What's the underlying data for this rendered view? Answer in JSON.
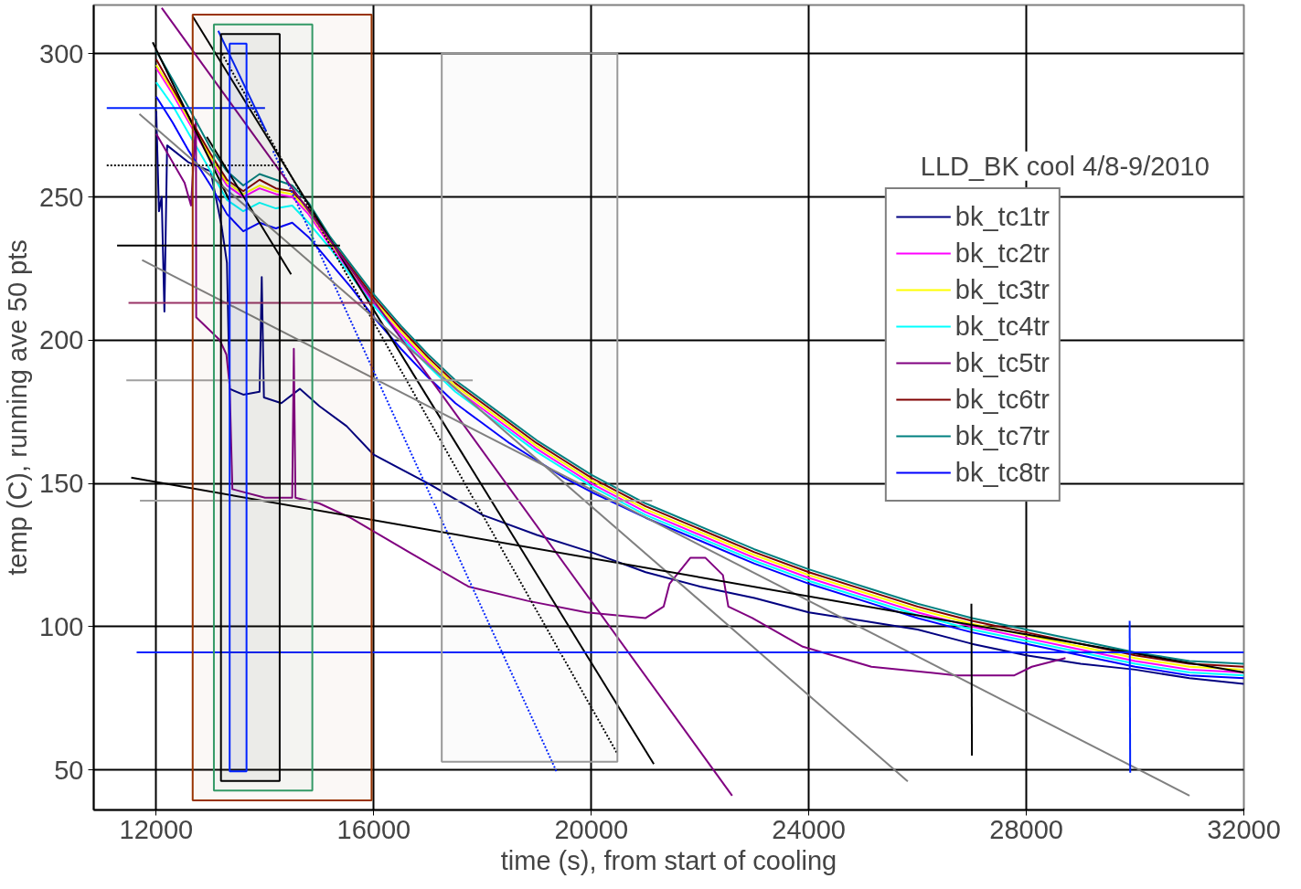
{
  "chart_data": {
    "type": "line",
    "xlabel": "time (s), from start of cooling",
    "ylabel": "temp (C), running ave 50 pts",
    "annotations": [
      "LLD_BK cool 4/8-9/2010"
    ],
    "xlim": [
      10850,
      32000
    ],
    "ylim": [
      36,
      317
    ],
    "xticks": [
      12000,
      16000,
      20000,
      24000,
      28000,
      32000
    ],
    "yticks": [
      50,
      100,
      150,
      200,
      250,
      300
    ],
    "grid": true,
    "legend": "top right",
    "line_style": "solid",
    "marker": "none",
    "x": [
      12000,
      12300,
      12600,
      13000,
      13300,
      13600,
      13900,
      14200,
      14500,
      14800,
      15200,
      15600,
      16000,
      16500,
      17000,
      17500,
      18000,
      18500,
      19000,
      19500,
      20000,
      21000,
      22000,
      23000,
      24000,
      25000,
      26000,
      27000,
      28000,
      29000,
      30000,
      31000,
      32000
    ],
    "series": [
      {
        "name": "bk_tc1tr",
        "color": "#000080",
        "x": [
          12000,
          12050,
          12100,
          12150,
          12200,
          12600,
          13000,
          13200,
          13300,
          13350,
          13600,
          13900,
          13940,
          13980,
          14300,
          14640,
          15000,
          15500,
          16000,
          17000,
          18000,
          19000,
          20000,
          21000,
          22000,
          23000,
          24000,
          25000,
          26000,
          27000,
          28000,
          29000,
          30000,
          31000,
          32000
        ],
        "values": [
          280,
          245,
          250,
          210,
          268,
          262,
          259,
          240,
          227,
          183,
          181,
          182,
          222,
          180,
          178,
          183,
          177,
          170,
          160,
          150,
          139,
          132,
          126,
          119,
          114,
          110,
          105,
          102,
          99,
          94,
          90,
          87,
          85,
          82,
          80
        ]
      },
      {
        "name": "bk_tc2tr",
        "color": "#ff00ff",
        "values": [
          295,
          286,
          276,
          263,
          254,
          250,
          253,
          251,
          250,
          244,
          233,
          223,
          213,
          202,
          192,
          183,
          176,
          169,
          162,
          156,
          150,
          140,
          132,
          124,
          117,
          111,
          105,
          100,
          96,
          92,
          88,
          85,
          84
        ]
      },
      {
        "name": "bk_tc3tr",
        "color": "#ffff00",
        "values": [
          296,
          287,
          277,
          264,
          255,
          251,
          254,
          252,
          251,
          245,
          234,
          224,
          214,
          203,
          193,
          184,
          177,
          170,
          163,
          157,
          151,
          141,
          133,
          125,
          118,
          112,
          106,
          101,
          97,
          93,
          89,
          86,
          85
        ]
      },
      {
        "name": "bk_tc4tr",
        "color": "#00ffff",
        "values": [
          290,
          282,
          272,
          259,
          249,
          245,
          248,
          246,
          247,
          241,
          232,
          222,
          212,
          201,
          191,
          182,
          175,
          168,
          161,
          155,
          149,
          139,
          131,
          123,
          116,
          110,
          104,
          99,
          95,
          91,
          87,
          84,
          83
        ]
      },
      {
        "name": "bk_tc5tr",
        "color": "#800080",
        "x": [
          12000,
          12520,
          12640,
          12730,
          12735,
          13170,
          13290,
          13350,
          13400,
          14000,
          14500,
          14530,
          14560,
          15000,
          15570,
          16650,
          17740,
          18830,
          19910,
          21000,
          21330,
          21440,
          21820,
          22100,
          22420,
          22520,
          22960,
          23890,
          25150,
          26710,
          27780,
          28100,
          28720
        ],
        "values": [
          272,
          255,
          247,
          277,
          208,
          200,
          195,
          184,
          148,
          145,
          145,
          197,
          145,
          143,
          138,
          126,
          114,
          109,
          105,
          103,
          107,
          115,
          124,
          124,
          118,
          107,
          103,
          93,
          86,
          83,
          83,
          86,
          89
        ]
      },
      {
        "name": "bk_tc6tr",
        "color": "#800000",
        "values": [
          298,
          288,
          278,
          265,
          256,
          252,
          256,
          253,
          252,
          246,
          235,
          225,
          215,
          204,
          194,
          185,
          178,
          171,
          164,
          158,
          152,
          142,
          134,
          126,
          119,
          113,
          107,
          102,
          98,
          94,
          90,
          87,
          86
        ]
      },
      {
        "name": "bk_tc7tr",
        "color": "#008080",
        "values": [
          301,
          291,
          281,
          267,
          259,
          254,
          258,
          256,
          254,
          248,
          236,
          226,
          216,
          205,
          195,
          186,
          179,
          172,
          165,
          159,
          153,
          143,
          135,
          127,
          120,
          114,
          108,
          103,
          99,
          95,
          91,
          88,
          87
        ]
      },
      {
        "name": "bk_tc8tr",
        "color": "#0000ff",
        "values": [
          285,
          276,
          266,
          254,
          244,
          238,
          241,
          239,
          241,
          236,
          227,
          218,
          208,
          197,
          187,
          178,
          171,
          164,
          158,
          152,
          147,
          138,
          130,
          122,
          115,
          109,
          103,
          98,
          94,
          90,
          86,
          83,
          82
        ]
      },
      {
        "color": "#000000",
        "x": [
          11935,
          13340
        ],
        "values": [
          304,
          249
        ]
      },
      {
        "color": "#000000",
        "x": [
          12930,
          14480
        ],
        "values": [
          271,
          223
        ]
      },
      {
        "color": "#000000",
        "x": [
          12670,
          21150
        ],
        "values": [
          313,
          52
        ]
      },
      {
        "color": "#000000",
        "line_style": "dotted",
        "x": [
          13210,
          20470
        ],
        "values": [
          300,
          56
        ]
      },
      {
        "color": "#0022ff",
        "x": [
          13140,
          14020
        ],
        "values": [
          308,
          273
        ]
      },
      {
        "color": "#0022ff",
        "line_style": "dotted",
        "x": [
          14150,
          19370
        ],
        "values": [
          266,
          49
        ]
      },
      {
        "color": "#800080",
        "x": [
          12100,
          22590
        ],
        "values": [
          316,
          41
        ]
      },
      {
        "color": "#808080",
        "x": [
          11690,
          25820
        ],
        "values": [
          279,
          46
        ]
      },
      {
        "color": "#808080",
        "x": [
          11740,
          31000
        ],
        "values": [
          228,
          41
        ]
      },
      {
        "color": "#000000",
        "x": [
          11540,
          32000
        ],
        "values": [
          152,
          84
        ]
      },
      {
        "color": "#0022ff",
        "x": [
          11090,
          14000
        ],
        "values": [
          281,
          281
        ]
      },
      {
        "color": "#000000",
        "line_style": "dotted",
        "x": [
          11090,
          14270
        ],
        "values": [
          261,
          261
        ]
      },
      {
        "color": "#000000",
        "x": [
          11280,
          15380
        ],
        "values": [
          233,
          233
        ]
      },
      {
        "color": "#993366",
        "x": [
          11490,
          16060
        ],
        "values": [
          213,
          213
        ]
      },
      {
        "color": "#a0a0a0",
        "x": [
          11450,
          17820
        ],
        "values": [
          186,
          186
        ]
      },
      {
        "color": "#a0a0a0",
        "x": [
          11700,
          21120
        ],
        "values": [
          144,
          144
        ]
      },
      {
        "color": "#0022ff",
        "x": [
          11640,
          32000
        ],
        "values": [
          91,
          91
        ]
      },
      {
        "color": "#000000",
        "x": [
          26990,
          27000
        ],
        "values": [
          108,
          55
        ]
      },
      {
        "color": "#0022ff",
        "x": [
          29900,
          29910
        ],
        "values": [
          102,
          49
        ]
      }
    ],
    "bands": [
      {
        "axis": "x",
        "from": 12670,
        "to": 15960,
        "color": "#993300"
      },
      {
        "axis": "x",
        "from": 13060,
        "to": 14870,
        "color": "#339966"
      },
      {
        "axis": "x",
        "from": 13190,
        "to": 14270,
        "color": "#000000"
      },
      {
        "axis": "x",
        "from": 13350,
        "to": 13660,
        "color": "#0022ff"
      },
      {
        "axis": "x",
        "from": 17250,
        "to": 20480,
        "color": "#999999"
      }
    ]
  }
}
